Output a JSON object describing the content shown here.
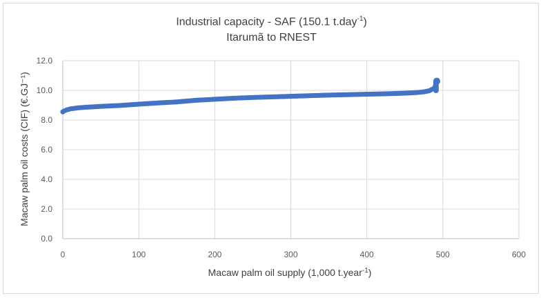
{
  "chart_data": {
    "type": "scatter",
    "title_main": "Industrial capacity - SAF (150.1 t.day",
    "title_sup": "-1",
    "title_close": ")",
    "subtitle": "Itarumã to RNEST",
    "xlabel_main": "Macaw palm oil supply (1,000 t.year",
    "xlabel_sup": "-1",
    "xlabel_close": ")",
    "ylabel": "Macaw palm oil costs (CIF) (€.GJ⁻¹)",
    "xlim": [
      0,
      600
    ],
    "ylim": [
      0,
      12
    ],
    "x_ticks": [
      "0",
      "100",
      "200",
      "300",
      "400",
      "500",
      "600"
    ],
    "y_ticks": [
      "0.0",
      "2.0",
      "4.0",
      "6.0",
      "8.0",
      "10.0",
      "12.0"
    ],
    "grid": true,
    "marker_color": "#4472c4",
    "series": [
      {
        "x": [
          0,
          2,
          5,
          10,
          20,
          30,
          50,
          75,
          100,
          125,
          150,
          175,
          200,
          225,
          250,
          275,
          300,
          325,
          350,
          375,
          400,
          425,
          450,
          465,
          475,
          482,
          487,
          490,
          491,
          492
        ],
        "y": [
          8.55,
          8.62,
          8.68,
          8.75,
          8.82,
          8.86,
          8.92,
          8.98,
          9.07,
          9.15,
          9.22,
          9.33,
          9.4,
          9.47,
          9.52,
          9.56,
          9.6,
          9.64,
          9.68,
          9.71,
          9.74,
          9.77,
          9.81,
          9.85,
          9.9,
          9.97,
          10.1,
          10.3,
          10.55,
          10.62
        ]
      }
    ]
  }
}
